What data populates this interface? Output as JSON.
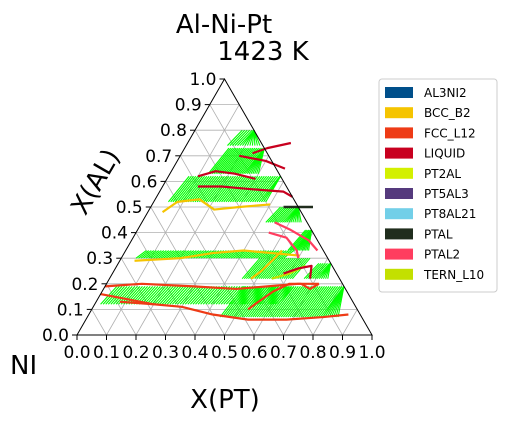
{
  "chart_data": {
    "type": "ternary-phase-diagram",
    "title_line1": "Al-Ni-Pt",
    "title_line2": "1423  K",
    "corner_label": "NI",
    "xlabel": "X(PT)",
    "ylabel": "X(AL)",
    "xlim": [
      0,
      1
    ],
    "ylim": [
      0,
      1
    ],
    "x_ticks": [
      "0.0",
      "0.1",
      "0.2",
      "0.3",
      "0.4",
      "0.5",
      "0.6",
      "0.7",
      "0.8",
      "0.9",
      "1.0"
    ],
    "y_ticks": [
      "0.0",
      "0.1",
      "0.2",
      "0.3",
      "0.4",
      "0.5",
      "0.6",
      "0.7",
      "0.8",
      "0.9",
      "1.0"
    ],
    "grid": true,
    "legend_position": "right",
    "legend": [
      {
        "name": "AL3NI2",
        "color": "#004f8a"
      },
      {
        "name": "BCC_B2",
        "color": "#f5c400"
      },
      {
        "name": "FCC_L12",
        "color": "#ee3b16"
      },
      {
        "name": "LIQUID",
        "color": "#c8001f"
      },
      {
        "name": "PT2AL",
        "color": "#d3f000"
      },
      {
        "name": "PT5AL3",
        "color": "#553a7d"
      },
      {
        "name": "PT8AL21",
        "color": "#72cfe8"
      },
      {
        "name": "PTAL",
        "color": "#202d1d"
      },
      {
        "name": "PTAL2",
        "color": "#ff3d5f"
      },
      {
        "name": "TERN_L10",
        "color": "#c3e000"
      }
    ],
    "tie_line_color": "#00ff00",
    "boundaries": [
      {
        "phase": "FCC_L12",
        "points": [
          [
            0.0,
            0.19
          ],
          [
            0.12,
            0.2
          ],
          [
            0.3,
            0.19
          ],
          [
            0.45,
            0.18
          ],
          [
            0.55,
            0.19
          ],
          [
            0.65,
            0.2
          ],
          [
            0.72,
            0.2
          ]
        ]
      },
      {
        "phase": "FCC_L12",
        "points": [
          [
            0.08,
            0.13
          ],
          [
            0.2,
            0.12
          ],
          [
            0.3,
            0.11
          ],
          [
            0.42,
            0.08
          ],
          [
            0.55,
            0.06
          ],
          [
            0.68,
            0.06
          ],
          [
            0.8,
            0.07
          ],
          [
            0.88,
            0.08
          ]
        ]
      },
      {
        "phase": "FCC_L12",
        "points": [
          [
            0.0,
            0.16
          ],
          [
            0.1,
            0.14
          ],
          [
            0.2,
            0.12
          ]
        ]
      },
      {
        "phase": "BCC_B2",
        "points": [
          [
            0.05,
            0.29
          ],
          [
            0.2,
            0.3
          ],
          [
            0.3,
            0.32
          ],
          [
            0.4,
            0.33
          ],
          [
            0.5,
            0.32
          ],
          [
            0.6,
            0.31
          ]
        ]
      },
      {
        "phase": "BCC_B2",
        "points": [
          [
            0.05,
            0.48
          ],
          [
            0.08,
            0.52
          ],
          [
            0.15,
            0.53
          ],
          [
            0.22,
            0.49
          ],
          [
            0.3,
            0.5
          ],
          [
            0.4,
            0.51
          ]
        ]
      },
      {
        "phase": "BCC_B2",
        "points": [
          [
            0.48,
            0.22
          ],
          [
            0.5,
            0.25
          ],
          [
            0.52,
            0.3
          ],
          [
            0.53,
            0.33
          ]
        ]
      },
      {
        "phase": "FCC_L12",
        "points": [
          [
            0.53,
            0.1
          ],
          [
            0.55,
            0.13
          ],
          [
            0.58,
            0.17
          ],
          [
            0.62,
            0.2
          ],
          [
            0.66,
            0.2
          ]
        ]
      },
      {
        "phase": "LIQUID",
        "points": [
          [
            0.24,
            0.71
          ],
          [
            0.28,
            0.73
          ],
          [
            0.35,
            0.75
          ]
        ]
      },
      {
        "phase": "LIQUID",
        "points": [
          [
            0.1,
            0.62
          ],
          [
            0.15,
            0.64
          ],
          [
            0.22,
            0.63
          ],
          [
            0.3,
            0.61
          ]
        ]
      },
      {
        "phase": "LIQUID",
        "points": [
          [
            0.12,
            0.58
          ],
          [
            0.2,
            0.58
          ],
          [
            0.3,
            0.57
          ],
          [
            0.42,
            0.56
          ],
          [
            0.46,
            0.54
          ]
        ]
      },
      {
        "phase": "LIQUID",
        "points": [
          [
            0.2,
            0.7
          ],
          [
            0.3,
            0.68
          ],
          [
            0.38,
            0.65
          ]
        ]
      },
      {
        "phase": "PTAL",
        "points": [
          [
            0.45,
            0.5
          ],
          [
            0.55,
            0.5
          ]
        ]
      },
      {
        "phase": "PTAL2",
        "points": [
          [
            0.45,
            0.44
          ],
          [
            0.52,
            0.41
          ],
          [
            0.6,
            0.37
          ],
          [
            0.65,
            0.33
          ]
        ]
      },
      {
        "phase": "PTAL2",
        "points": [
          [
            0.45,
            0.4
          ],
          [
            0.52,
            0.38
          ],
          [
            0.58,
            0.33
          ],
          [
            0.6,
            0.3
          ]
        ]
      },
      {
        "phase": "TERN_L10",
        "points": [
          [
            0.55,
            0.22
          ],
          [
            0.6,
            0.24
          ],
          [
            0.64,
            0.27
          ]
        ]
      },
      {
        "phase": "FCC_L12",
        "points": [
          [
            0.66,
            0.2
          ],
          [
            0.7,
            0.18
          ],
          [
            0.72,
            0.2
          ]
        ]
      },
      {
        "phase": "LIQUID",
        "points": [
          [
            0.58,
            0.24
          ],
          [
            0.62,
            0.26
          ],
          [
            0.66,
            0.27
          ],
          [
            0.68,
            0.22
          ]
        ]
      }
    ]
  }
}
